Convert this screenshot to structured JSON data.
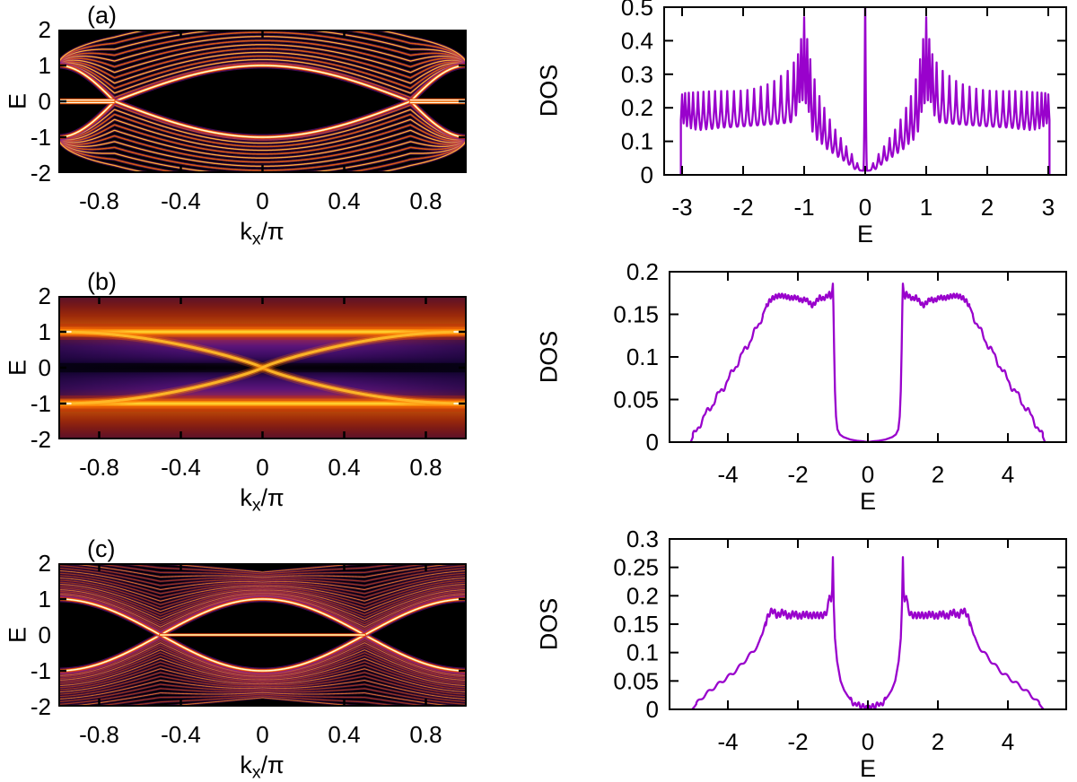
{
  "figure": {
    "description": "Three-row physics figure: left column ribbon band-structure spectral-weight heatmaps vs k_x/pi, right column density-of-states (DOS) curves vs E",
    "rows": [
      "a",
      "b",
      "c"
    ],
    "background": "#ffffff",
    "axis_color": "#000000",
    "dos_line_color": "#9902cc"
  },
  "chart_data": [
    {
      "id": "band_a",
      "type": "heatmap",
      "panel_label": "(a)",
      "ylabel": "E",
      "xlabel_parts": {
        "pre": "k",
        "sub": "x",
        "post": "/π"
      },
      "xlim": [
        -1,
        1
      ],
      "ylim": [
        -2,
        2
      ],
      "xticks": {
        "values": [
          -0.8,
          -0.4,
          0,
          0.4,
          0.8
        ],
        "labels": [
          "-0.8",
          "-0.4",
          "0",
          "0.4",
          "0.8"
        ]
      },
      "yticks": {
        "values": [
          2,
          1,
          0,
          -1,
          -2
        ],
        "labels": [
          "2",
          "1",
          "0",
          "-1",
          "-2"
        ]
      },
      "colormap": [
        "#000000",
        "#2d1160",
        "#721f81",
        "#b63679",
        "#f1605d",
        "#feb078",
        "#fcfdbf"
      ],
      "structure": {
        "description": "clean ribbon spectrum: fan of ~13 bands pinching at (k=±1, E=±1), black lens-shaped gap in center",
        "n_fan_bands": 12,
        "pinch_points": [
          {
            "k": -1,
            "E": 1
          },
          {
            "k": 1,
            "E": 1
          },
          {
            "k": -1,
            "E": -1
          },
          {
            "k": 1,
            "E": -1
          }
        ],
        "gap_closing_k": 0.725,
        "edge_flat_band": {
          "E": 0,
          "k_range_abs": [
            0.725,
            1.0
          ],
          "double_line_offset": 0.035
        },
        "bright_band": "dips from |E|~1 at k=0 to 0 at |k|=0.725, back to 1 at |k|=1",
        "top_envelope": "E = 1 + 1.35*sqrt(cos(pi*k/2))"
      }
    },
    {
      "id": "dos_a",
      "type": "line",
      "color": "#9902cc",
      "ylabel": "DOS",
      "xlabel": "E",
      "xlim": [
        -3.3,
        3.3
      ],
      "ylim": [
        0,
        0.5
      ],
      "xticks": {
        "values": [
          -3,
          -2,
          -1,
          0,
          1,
          2,
          3
        ],
        "labels": [
          "-3",
          "-2",
          "-1",
          "0",
          "1",
          "2",
          "3"
        ]
      },
      "yticks": {
        "values": [
          0,
          0.1,
          0.2,
          0.3,
          0.4,
          0.5
        ],
        "labels": [
          "0",
          "0.1",
          "0.2",
          "0.3",
          "0.4",
          "0.5"
        ]
      },
      "symmetric": true,
      "band_edge": 3.02,
      "zero_peak": {
        "E": 0,
        "height": 0.55,
        "half_width": 0.03,
        "note": "central spike clipped at top of frame (0.5)"
      },
      "base_points": [
        [
          0,
          0.012
        ],
        [
          0.15,
          0.014
        ],
        [
          0.3,
          0.035
        ],
        [
          0.5,
          0.06
        ],
        [
          0.7,
          0.085
        ],
        [
          0.85,
          0.105
        ],
        [
          0.95,
          0.125
        ],
        [
          1.1,
          0.16
        ],
        [
          1.3,
          0.155
        ],
        [
          1.6,
          0.15
        ],
        [
          2.0,
          0.145
        ],
        [
          2.4,
          0.14
        ],
        [
          2.8,
          0.13
        ],
        [
          2.95,
          0.125
        ],
        [
          3.02,
          0.12
        ]
      ],
      "vanhove_peaks": [
        [
          0.13,
          0.035
        ],
        [
          0.22,
          0.062
        ],
        [
          0.31,
          0.085
        ],
        [
          0.4,
          0.11
        ],
        [
          0.49,
          0.135
        ],
        [
          0.58,
          0.165
        ],
        [
          0.67,
          0.2
        ],
        [
          0.75,
          0.235
        ],
        [
          0.83,
          0.285
        ],
        [
          0.9,
          0.345
        ],
        [
          0.95,
          0.405
        ],
        [
          1.0,
          0.47
        ],
        [
          1.05,
          0.405
        ],
        [
          1.1,
          0.36
        ],
        [
          1.17,
          0.335
        ],
        [
          1.27,
          0.31
        ],
        [
          1.38,
          0.295
        ],
        [
          1.49,
          0.28
        ],
        [
          1.6,
          0.27
        ],
        [
          1.71,
          0.263
        ],
        [
          1.82,
          0.257
        ],
        [
          1.93,
          0.253
        ],
        [
          2.04,
          0.251
        ],
        [
          2.15,
          0.25
        ],
        [
          2.26,
          0.25
        ],
        [
          2.36,
          0.25
        ],
        [
          2.46,
          0.25
        ],
        [
          2.56,
          0.249
        ],
        [
          2.65,
          0.248
        ],
        [
          2.74,
          0.247
        ],
        [
          2.82,
          0.246
        ],
        [
          2.89,
          0.245
        ],
        [
          2.95,
          0.244
        ],
        [
          3.0,
          0.24
        ]
      ]
    },
    {
      "id": "band_b",
      "type": "heatmap",
      "panel_label": "(b)",
      "ylabel": "E",
      "xlabel_parts": {
        "pre": "k",
        "sub": "x",
        "post": "/π"
      },
      "xlim": [
        -1,
        1
      ],
      "ylim": [
        -2,
        2
      ],
      "xticks": {
        "values": [
          -0.8,
          -0.4,
          0,
          0.4,
          0.8
        ],
        "labels": [
          "-0.8",
          "-0.4",
          "0",
          "0.4",
          "0.8"
        ]
      },
      "yticks": {
        "values": [
          2,
          1,
          0,
          -1,
          -2
        ],
        "labels": [
          "2",
          "1",
          "0",
          "-1",
          "-2"
        ]
      },
      "colormap": [
        "#000000",
        "#2d1160",
        "#721f81",
        "#b63679",
        "#f1605d",
        "#feb078",
        "#fcfdbf"
      ],
      "structure": {
        "description": "disorder-smeared spectral function: bright horizontal lines at E=±1, X-shaped crossing through (0,0), black stripe at E=0, red/purple washed background",
        "bright_lines": [
          "E=1",
          "E=-1",
          "E=-sin(pi*k/2)",
          "E=+sin(pi*k/2)"
        ],
        "dark_stripe_E": 0
      }
    },
    {
      "id": "dos_b",
      "type": "line",
      "color": "#9902cc",
      "ylabel": "DOS",
      "xlabel": "E",
      "xlim": [
        -5.7,
        5.7
      ],
      "ylim": [
        0,
        0.2
      ],
      "xticks": {
        "values": [
          -4,
          -2,
          0,
          2,
          4
        ],
        "labels": [
          "-4",
          "-2",
          "0",
          "2",
          "4"
        ]
      },
      "yticks": {
        "values": [
          0,
          0.05,
          0.1,
          0.15,
          0.2
        ],
        "labels": [
          "0",
          "0.05",
          "0.1",
          "0.15",
          "0.2"
        ]
      },
      "symmetric": true,
      "points": [
        [
          0,
          0
        ],
        [
          0.15,
          0.001
        ],
        [
          0.3,
          0.0015
        ],
        [
          0.5,
          0.003
        ],
        [
          0.7,
          0.006
        ],
        [
          0.8,
          0.009
        ],
        [
          0.87,
          0.015
        ],
        [
          0.91,
          0.03
        ],
        [
          0.94,
          0.06
        ],
        [
          0.965,
          0.11
        ],
        [
          0.985,
          0.16
        ],
        [
          1.0,
          0.186
        ],
        [
          1.02,
          0.178
        ],
        [
          1.05,
          0.17
        ],
        [
          1.1,
          0.174
        ],
        [
          1.18,
          0.171
        ],
        [
          1.28,
          0.168
        ],
        [
          1.38,
          0.17
        ],
        [
          1.48,
          0.165
        ],
        [
          1.58,
          0.16
        ],
        [
          1.68,
          0.164
        ],
        [
          1.78,
          0.168
        ],
        [
          1.9,
          0.166
        ],
        [
          2.05,
          0.17
        ],
        [
          2.2,
          0.169
        ],
        [
          2.35,
          0.171
        ],
        [
          2.5,
          0.172
        ],
        [
          2.62,
          0.171
        ],
        [
          2.72,
          0.169
        ],
        [
          2.82,
          0.165
        ],
        [
          2.92,
          0.158
        ],
        [
          3.0,
          0.15
        ],
        [
          3.1,
          0.14
        ],
        [
          3.22,
          0.13
        ],
        [
          3.35,
          0.12
        ],
        [
          3.5,
          0.11
        ],
        [
          3.65,
          0.098
        ],
        [
          3.8,
          0.088
        ],
        [
          3.95,
          0.076
        ],
        [
          4.1,
          0.066
        ],
        [
          4.25,
          0.057
        ],
        [
          4.4,
          0.047
        ],
        [
          4.55,
          0.038
        ],
        [
          4.7,
          0.028
        ],
        [
          4.82,
          0.02
        ],
        [
          4.92,
          0.012
        ],
        [
          5.0,
          0.006
        ],
        [
          5.06,
          0
        ]
      ]
    },
    {
      "id": "band_c",
      "type": "heatmap",
      "panel_label": "(c)",
      "ylabel": "E",
      "xlabel_parts": {
        "pre": "k",
        "sub": "x",
        "post": "/π"
      },
      "xlim": [
        -1,
        1
      ],
      "ylim": [
        -2,
        2
      ],
      "xticks": {
        "values": [
          -0.8,
          -0.4,
          0,
          0.4,
          0.8
        ],
        "labels": [
          "-0.8",
          "-0.4",
          "0",
          "0.4",
          "0.8"
        ]
      },
      "yticks": {
        "values": [
          2,
          1,
          0,
          -1,
          -2
        ],
        "labels": [
          "2",
          "1",
          "0",
          "-1",
          "-2"
        ]
      },
      "colormap": [
        "#000000",
        "#2d1160",
        "#721f81",
        "#b63679",
        "#f1605d",
        "#feb078",
        "#fcfdbf"
      ],
      "structure": {
        "description": "dense ribbon spectrum: bright band E=±cos(pi*k) crossing at |k|=0.5, flat bright line at E=0 between crossings, black eyes left/right and black wedges top/bottom center",
        "n_fan_bands": 24,
        "bright_band": "E = ±cos(pi*k)",
        "gap_closing_k": 0.5,
        "edge_flat_band": {
          "E": 0,
          "k_range": [
            -0.5,
            0.5
          ]
        },
        "top_envelope": "E = 1.75 + 0.5*|k|"
      }
    },
    {
      "id": "dos_c",
      "type": "line",
      "color": "#9902cc",
      "ylabel": "DOS",
      "xlabel": "E",
      "xlim": [
        -5.7,
        5.7
      ],
      "ylim": [
        0,
        0.3
      ],
      "xticks": {
        "values": [
          -4,
          -2,
          0,
          2,
          4
        ],
        "labels": [
          "-4",
          "-2",
          "0",
          "2",
          "4"
        ]
      },
      "yticks": {
        "values": [
          0,
          0.05,
          0.1,
          0.15,
          0.2,
          0.25,
          0.3
        ],
        "labels": [
          "0",
          "0.05",
          "0.1",
          "0.15",
          "0.2",
          "0.25",
          "0.3"
        ]
      },
      "symmetric": true,
      "points": [
        [
          0,
          0.002
        ],
        [
          0.12,
          0.006
        ],
        [
          0.2,
          0.004
        ],
        [
          0.3,
          0.011
        ],
        [
          0.38,
          0.007
        ],
        [
          0.48,
          0.016
        ],
        [
          0.58,
          0.024
        ],
        [
          0.68,
          0.034
        ],
        [
          0.78,
          0.05
        ],
        [
          0.88,
          0.085
        ],
        [
          0.94,
          0.125
        ],
        [
          0.975,
          0.185
        ],
        [
          1.0,
          0.268
        ],
        [
          1.02,
          0.21
        ],
        [
          1.05,
          0.19
        ],
        [
          1.1,
          0.2
        ],
        [
          1.15,
          0.175
        ],
        [
          1.25,
          0.168
        ],
        [
          1.4,
          0.163
        ],
        [
          1.55,
          0.168
        ],
        [
          1.7,
          0.164
        ],
        [
          1.85,
          0.168
        ],
        [
          2.0,
          0.164
        ],
        [
          2.15,
          0.168
        ],
        [
          2.3,
          0.165
        ],
        [
          2.45,
          0.17
        ],
        [
          2.6,
          0.167
        ],
        [
          2.7,
          0.172
        ],
        [
          2.8,
          0.17
        ],
        [
          2.88,
          0.162
        ],
        [
          2.95,
          0.148
        ],
        [
          3.02,
          0.13
        ],
        [
          3.1,
          0.118
        ],
        [
          3.25,
          0.104
        ],
        [
          3.4,
          0.094
        ],
        [
          3.55,
          0.083
        ],
        [
          3.7,
          0.073
        ],
        [
          3.85,
          0.064
        ],
        [
          4.0,
          0.057
        ],
        [
          4.15,
          0.05
        ],
        [
          4.3,
          0.043
        ],
        [
          4.45,
          0.036
        ],
        [
          4.6,
          0.028
        ],
        [
          4.75,
          0.02
        ],
        [
          4.87,
          0.012
        ],
        [
          4.95,
          0.005
        ],
        [
          5.02,
          0
        ]
      ]
    }
  ]
}
